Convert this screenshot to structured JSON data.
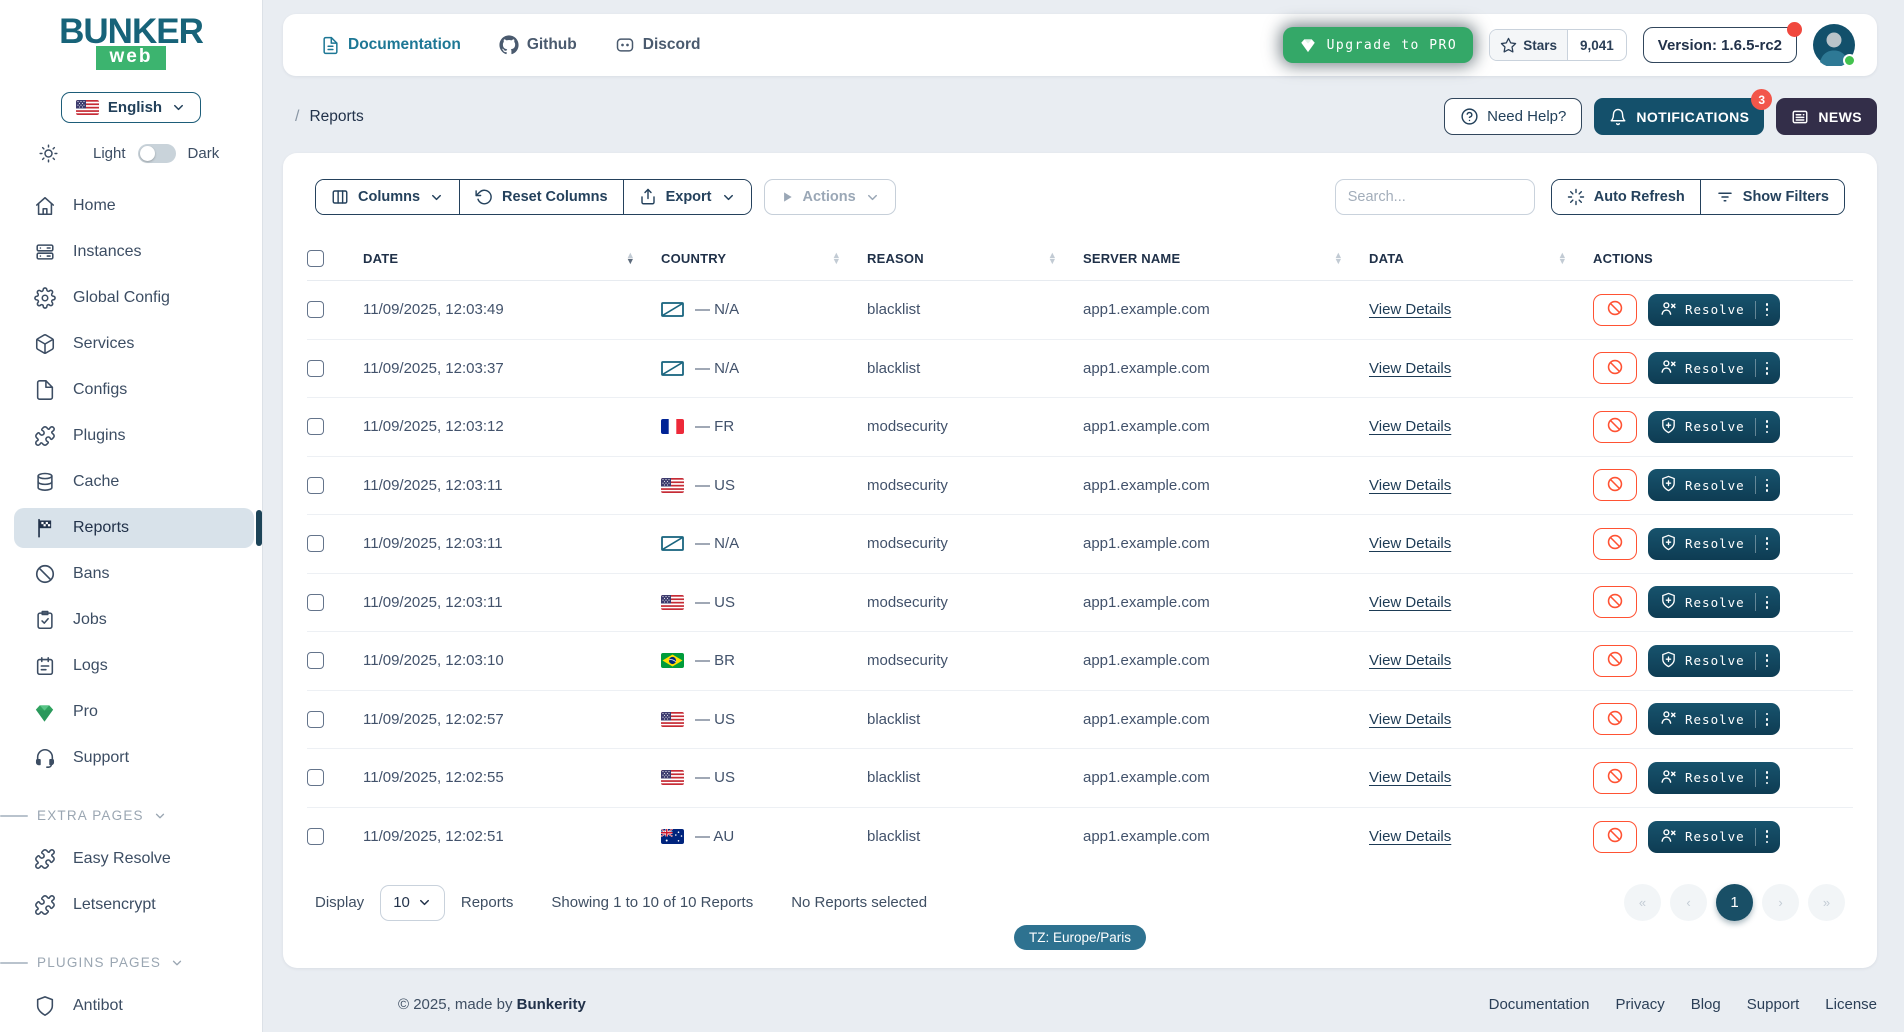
{
  "brand": {
    "title": "BUNKER",
    "subtitle": "web"
  },
  "sidebar": {
    "language": "English",
    "theme": {
      "light": "Light",
      "dark": "Dark"
    },
    "menu": [
      {
        "label": "Home",
        "icon": "home"
      },
      {
        "label": "Instances",
        "icon": "instances"
      },
      {
        "label": "Global Config",
        "icon": "gear"
      },
      {
        "label": "Services",
        "icon": "box"
      },
      {
        "label": "Configs",
        "icon": "file"
      },
      {
        "label": "Plugins",
        "icon": "puzzle"
      },
      {
        "label": "Cache",
        "icon": "database"
      },
      {
        "label": "Reports",
        "icon": "flag",
        "active": true
      },
      {
        "label": "Bans",
        "icon": "ban"
      },
      {
        "label": "Jobs",
        "icon": "clipboard"
      },
      {
        "label": "Logs",
        "icon": "calendar"
      },
      {
        "label": "Pro",
        "icon": "gem"
      },
      {
        "label": "Support",
        "icon": "headset"
      }
    ],
    "sections": [
      {
        "label": "EXTRA PAGES",
        "items": [
          {
            "label": "Easy Resolve",
            "icon": "puzzle"
          },
          {
            "label": "Letsencrypt",
            "icon": "puzzle"
          }
        ]
      },
      {
        "label": "PLUGINS PAGES",
        "items": [
          {
            "label": "Antibot",
            "icon": "shield"
          }
        ]
      }
    ]
  },
  "topbar": {
    "doc_link": "Documentation",
    "github_link": "Github",
    "discord_link": "Discord",
    "upgrade_label": "Upgrade to PRO",
    "stars_label": "Stars",
    "stars_count": "9,041",
    "version": "Version: 1.6.5-rc2"
  },
  "breadcrumb": {
    "separator": "/",
    "current": "Reports"
  },
  "page_actions": {
    "need_help": "Need Help?",
    "notifications": "NOTIFICATIONS",
    "notifications_count": "3",
    "news": "NEWS"
  },
  "toolbar": {
    "columns": "Columns",
    "reset_columns": "Reset Columns",
    "export": "Export",
    "actions": "Actions",
    "search_placeholder": "Search...",
    "auto_refresh": "Auto Refresh",
    "show_filters": "Show Filters"
  },
  "table": {
    "headers": {
      "date": "DATE",
      "country": "COUNTRY",
      "reason": "REASON",
      "server": "SERVER NAME",
      "data": "DATA",
      "actions": "ACTIONS"
    },
    "resolve_label": "Resolve",
    "data_link_label": "View Details",
    "rows": [
      {
        "date": "11/09/2025, 12:03:49",
        "country_code": "N/A",
        "country_label": "— N/A",
        "reason": "blacklist",
        "server": "app1.example.com",
        "resolve_icon": "user-x"
      },
      {
        "date": "11/09/2025, 12:03:37",
        "country_code": "N/A",
        "country_label": "— N/A",
        "reason": "blacklist",
        "server": "app1.example.com",
        "resolve_icon": "user-x"
      },
      {
        "date": "11/09/2025, 12:03:12",
        "country_code": "FR",
        "country_label": "— FR",
        "reason": "modsecurity",
        "server": "app1.example.com",
        "resolve_icon": "shield-plus"
      },
      {
        "date": "11/09/2025, 12:03:11",
        "country_code": "US",
        "country_label": "— US",
        "reason": "modsecurity",
        "server": "app1.example.com",
        "resolve_icon": "shield-plus"
      },
      {
        "date": "11/09/2025, 12:03:11",
        "country_code": "N/A",
        "country_label": "— N/A",
        "reason": "modsecurity",
        "server": "app1.example.com",
        "resolve_icon": "shield-plus"
      },
      {
        "date": "11/09/2025, 12:03:11",
        "country_code": "US",
        "country_label": "— US",
        "reason": "modsecurity",
        "server": "app1.example.com",
        "resolve_icon": "shield-plus"
      },
      {
        "date": "11/09/2025, 12:03:10",
        "country_code": "BR",
        "country_label": "— BR",
        "reason": "modsecurity",
        "server": "app1.example.com",
        "resolve_icon": "shield-plus"
      },
      {
        "date": "11/09/2025, 12:02:57",
        "country_code": "US",
        "country_label": "— US",
        "reason": "blacklist",
        "server": "app1.example.com",
        "resolve_icon": "user-x"
      },
      {
        "date": "11/09/2025, 12:02:55",
        "country_code": "US",
        "country_label": "— US",
        "reason": "blacklist",
        "server": "app1.example.com",
        "resolve_icon": "user-x"
      },
      {
        "date": "11/09/2025, 12:02:51",
        "country_code": "AU",
        "country_label": "— AU",
        "reason": "blacklist",
        "server": "app1.example.com",
        "resolve_icon": "user-x"
      }
    ]
  },
  "table_footer": {
    "display_label": "Display",
    "page_size": "10",
    "unit": "Reports",
    "showing": "Showing 1 to 10 of 10 Reports",
    "selected": "No Reports selected",
    "pager": [
      "«",
      "‹",
      "1",
      "›",
      "»"
    ],
    "pager_active_index": 2,
    "tz_badge": "TZ: Europe/Paris"
  },
  "footer": {
    "copyright": "© 2025, made by ",
    "brand": "Bunkerity",
    "links": [
      "Documentation",
      "Privacy",
      "Blog",
      "Support",
      "License"
    ]
  },
  "colors": {
    "brand_teal": "#176379",
    "brand_green": "#3cb46f",
    "upgrade_green": "#34a868",
    "notifications_bg": "#14506b",
    "news_bg": "#332e49",
    "danger": "#ff5233",
    "resolve_dark": "#0e3c53",
    "tz_badge": "#2e7290",
    "badge_red": "#f2564a"
  }
}
